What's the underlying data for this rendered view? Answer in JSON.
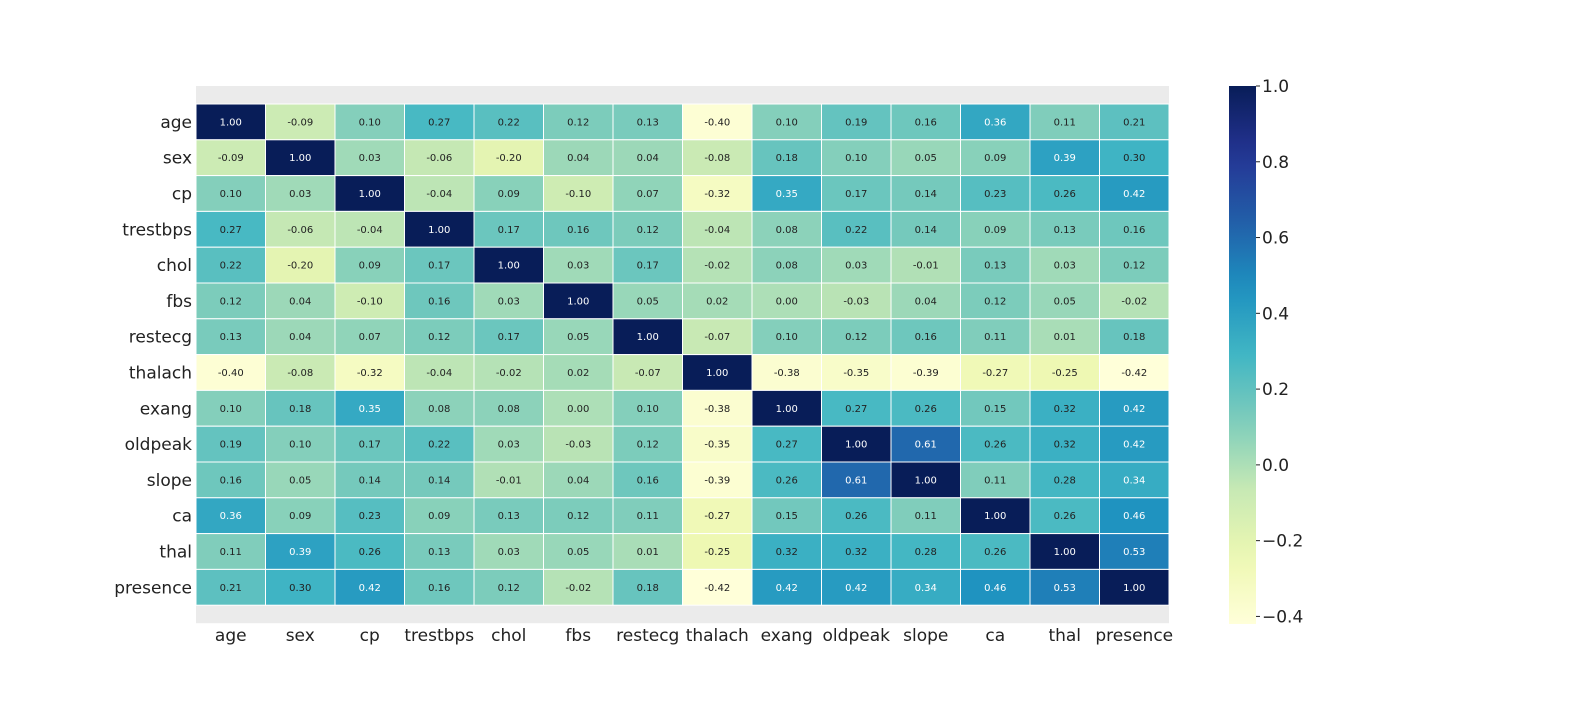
{
  "chart_data": {
    "type": "heatmap",
    "title": "",
    "xlabel": "",
    "ylabel": "",
    "x_labels": [
      "age",
      "sex",
      "cp",
      "trestbps",
      "chol",
      "fbs",
      "restecg",
      "thalach",
      "exang",
      "oldpeak",
      "slope",
      "ca",
      "thal",
      "presence"
    ],
    "y_labels": [
      "age",
      "sex",
      "cp",
      "trestbps",
      "chol",
      "fbs",
      "restecg",
      "thalach",
      "exang",
      "oldpeak",
      "slope",
      "ca",
      "thal",
      "presence"
    ],
    "values": [
      [
        1.0,
        -0.09,
        0.1,
        0.27,
        0.22,
        0.12,
        0.13,
        -0.4,
        0.1,
        0.19,
        0.16,
        0.36,
        0.11,
        0.21
      ],
      [
        -0.09,
        1.0,
        0.03,
        -0.06,
        -0.2,
        0.04,
        0.04,
        -0.08,
        0.18,
        0.1,
        0.05,
        0.09,
        0.39,
        0.3
      ],
      [
        0.1,
        0.03,
        1.0,
        -0.04,
        0.09,
        -0.1,
        0.07,
        -0.32,
        0.35,
        0.17,
        0.14,
        0.23,
        0.26,
        0.42
      ],
      [
        0.27,
        -0.06,
        -0.04,
        1.0,
        0.17,
        0.16,
        0.12,
        -0.04,
        0.08,
        0.22,
        0.14,
        0.09,
        0.13,
        0.16
      ],
      [
        0.22,
        -0.2,
        0.09,
        0.17,
        1.0,
        0.03,
        0.17,
        -0.02,
        0.08,
        0.03,
        -0.01,
        0.13,
        0.03,
        0.12
      ],
      [
        0.12,
        0.04,
        -0.1,
        0.16,
        0.03,
        1.0,
        0.05,
        0.02,
        -0.0,
        -0.03,
        0.04,
        0.12,
        0.05,
        -0.02
      ],
      [
        0.13,
        0.04,
        0.07,
        0.12,
        0.17,
        0.05,
        1.0,
        -0.07,
        0.1,
        0.12,
        0.16,
        0.11,
        0.01,
        0.18
      ],
      [
        -0.4,
        -0.08,
        -0.32,
        -0.04,
        -0.02,
        0.02,
        -0.07,
        1.0,
        -0.38,
        -0.35,
        -0.39,
        -0.27,
        -0.25,
        -0.42
      ],
      [
        0.1,
        0.18,
        0.35,
        0.08,
        0.08,
        -0.0,
        0.1,
        -0.38,
        1.0,
        0.27,
        0.26,
        0.15,
        0.32,
        0.42
      ],
      [
        0.19,
        0.1,
        0.17,
        0.22,
        0.03,
        -0.03,
        0.12,
        -0.35,
        0.27,
        1.0,
        0.61,
        0.26,
        0.32,
        0.42
      ],
      [
        0.16,
        0.05,
        0.14,
        0.14,
        -0.01,
        0.04,
        0.16,
        -0.39,
        0.26,
        0.61,
        1.0,
        0.11,
        0.28,
        0.34
      ],
      [
        0.36,
        0.09,
        0.23,
        0.09,
        0.13,
        0.12,
        0.11,
        -0.27,
        0.15,
        0.26,
        0.11,
        1.0,
        0.26,
        0.46
      ],
      [
        0.11,
        0.39,
        0.26,
        0.13,
        0.03,
        0.05,
        0.01,
        -0.25,
        0.32,
        0.32,
        0.28,
        0.26,
        1.0,
        0.53
      ],
      [
        0.21,
        0.3,
        0.42,
        0.16,
        0.12,
        -0.02,
        0.18,
        -0.42,
        0.42,
        0.42,
        0.34,
        0.46,
        0.53,
        1.0
      ]
    ],
    "value_format": "2 decimals",
    "colormap": "YlGnBu",
    "vmin": -0.42,
    "vmax": 1.0,
    "colorbar_ticks": [
      "1.0",
      "0.8",
      "0.6",
      "0.4",
      "0.2",
      "0.0",
      "−0.2",
      "−0.4"
    ],
    "colorbar_tick_values": [
      1.0,
      0.8,
      0.6,
      0.4,
      0.2,
      0.0,
      -0.2,
      -0.4
    ],
    "colorbar_position": "right",
    "grid": false,
    "legend": "none",
    "colors": {
      "background_panel": "#ebebeb",
      "cell_border": "#ffffff",
      "text_dark": "#222222",
      "text_light": "#ffffff"
    }
  }
}
